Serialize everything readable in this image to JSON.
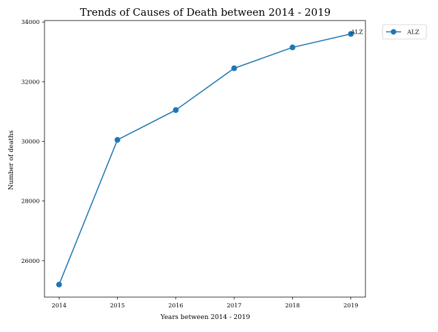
{
  "chart_data": {
    "type": "line",
    "title": "Trends of Causes of Death between 2014 - 2019",
    "xlabel": "Years between 2014 - 2019",
    "ylabel": "Number of deaths",
    "x": [
      2014,
      2015,
      2016,
      2017,
      2018,
      2019
    ],
    "x_tick_labels": [
      "2014",
      "2015",
      "2016",
      "2017",
      "2018",
      "2019"
    ],
    "y_ticks": [
      26000,
      28000,
      30000,
      32000,
      34000
    ],
    "y_tick_labels": [
      "26000",
      "28000",
      "30000",
      "32000",
      "34000"
    ],
    "xlim": [
      2013.75,
      2019.25
    ],
    "ylim": [
      24780,
      34050
    ],
    "grid": false,
    "legend_position": "outside top-right",
    "series": [
      {
        "name": "ALZ",
        "color": "#1f77b4",
        "marker": "circle",
        "values": [
          25200,
          30050,
          31050,
          32450,
          33150,
          33600
        ],
        "end_label": "ALZ"
      }
    ]
  }
}
